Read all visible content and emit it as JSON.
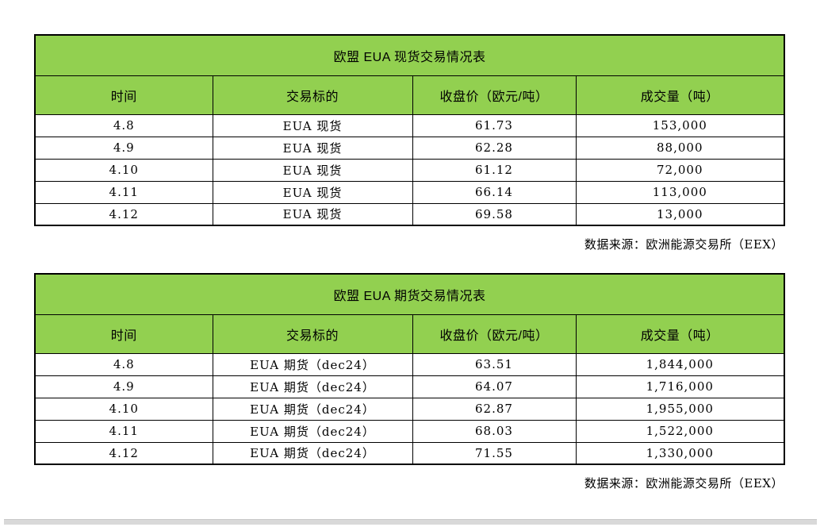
{
  "page": {
    "background": "#ffffff",
    "header_fill_color": "#92d050",
    "table_border_color": "#000000",
    "scrollbar_color": "#d9d9d9"
  },
  "tables": [
    {
      "title": "欧盟 EUA 现货交易情况表",
      "columns": [
        "时间",
        "交易标的",
        "收盘价（欧元/吨）",
        "成交量（吨）"
      ],
      "rows": [
        [
          "4.8",
          "EUA 现货",
          "61.73",
          "153,000"
        ],
        [
          "4.9",
          "EUA 现货",
          "62.28",
          "88,000"
        ],
        [
          "4.10",
          "EUA 现货",
          "61.12",
          "72,000"
        ],
        [
          "4.11",
          "EUA 现货",
          "66.14",
          "113,000"
        ],
        [
          "4.12",
          "EUA 现货",
          "69.58",
          "13,000"
        ]
      ],
      "source": "数据来源：欧洲能源交易所（EEX）"
    },
    {
      "title": "欧盟 EUA 期货交易情况表",
      "columns": [
        "时间",
        "交易标的",
        "收盘价（欧元/吨）",
        "成交量（吨）"
      ],
      "rows": [
        [
          "4.8",
          "EUA 期货（dec24）",
          "63.51",
          "1,844,000"
        ],
        [
          "4.9",
          "EUA 期货（dec24）",
          "64.07",
          "1,716,000"
        ],
        [
          "4.10",
          "EUA 期货（dec24）",
          "62.87",
          "1,955,000"
        ],
        [
          "4.11",
          "EUA 期货（dec24）",
          "68.03",
          "1,522,000"
        ],
        [
          "4.12",
          "EUA 期货（dec24）",
          "71.55",
          "1,330,000"
        ]
      ],
      "source": "数据来源：欧洲能源交易所（EEX）"
    }
  ]
}
